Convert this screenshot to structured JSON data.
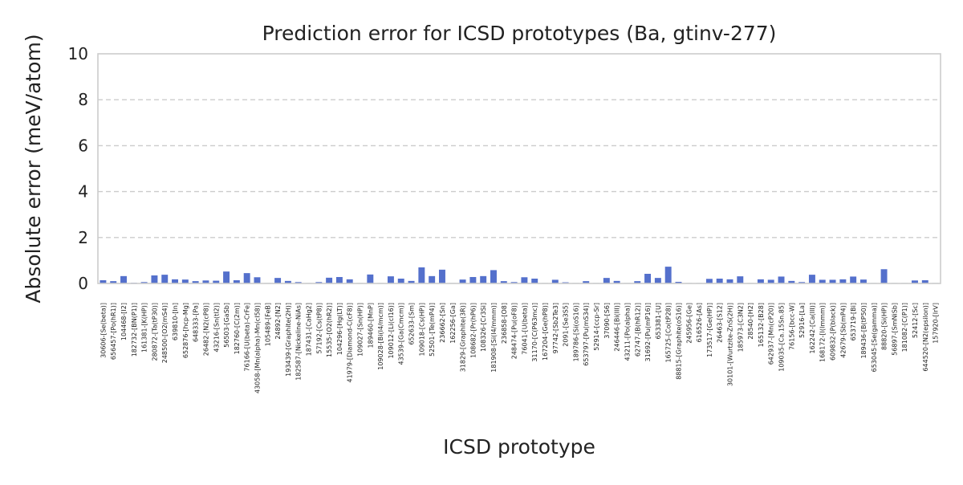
{
  "chart_data": {
    "type": "bar",
    "title": "Prediction error for ICSD prototypes (Ba, gtinv-277)",
    "xlabel": "ICSD prototype",
    "ylabel": "Absolute error (meV/atom)",
    "ylim": [
      0,
      10
    ],
    "yticks": [
      0,
      2,
      4,
      6,
      8,
      10
    ],
    "grid": "horizontal-dashed",
    "bar_color": "#5470cc",
    "categories": [
      "30606-[Se(beta)]",
      "656457-[Po(hR1)]",
      "104468-[I2]",
      "182732-[BN(P1)]",
      "161381-[K(HP)]",
      "280872-[Ta(tP30)]",
      "248500-[O2(mS4)]",
      "639810-[In]",
      "652876-[hcp-Mg]",
      "648333-[Pa]",
      "26482-[N2(cP8)]",
      "43216-[Sn(tI2)]",
      "56503-[GaSb]",
      "182760-[C(2m)]",
      "76166-[U(beta)-CrFe]",
      "43058-[Mn(alpha)-Mn(cI58)]",
      "105489-[FeB]",
      "24892-[N2]",
      "193439-[Graphite(2H)]",
      "182587-[Nickeline-NiAs]",
      "187431-[CaHg2]",
      "57192-[Cs(tP8)]",
      "15535-[O2(hR2)]",
      "104296-[Hg(LT)]",
      "41979-[Diamond-C(cF8)]",
      "109027-[Sn(HP)]",
      "189460-[MnP]",
      "109028-[Bi(I4/mcm)]",
      "109012-[Li(cI16)]",
      "43539-[Ga(Cmcm)]",
      "652633-[Sm]",
      "109018-[Cs(HP)]",
      "52501-[Te(mP4)]",
      "236662-[Sn]",
      "162256-[Ga]",
      "31829-[Graphite(3R)]",
      "108682-[Pr(hP6)]",
      "108326-[Cr3Si]",
      "181908-[Si(I4/mmm)]",
      "236858-[O8]",
      "248474-[Pu(oF8)]",
      "76041-[U(beta)]",
      "31170-[C(P63mc)]",
      "167204-[Ge(hP8)]",
      "97742-[Sb2Te3]",
      "2091-[Se3S5]",
      "189786-[Si(oS16)]",
      "653797-[Pu(mS34)]",
      "52914-[ccp-Sr]",
      "37090-[S6]",
      "246446-[Bi(III)]",
      "43211-[Po(alpha)]",
      "62747-[B(hR12)]",
      "31692-[Pu(mP16)]",
      "653381-[U]",
      "165725-[Co(tP28)]",
      "88815-[Graphite(oS16)]",
      "245956-[Ge]",
      "616526-[As]",
      "173517-[Ge(HP)]",
      "26463-[S12]",
      "30101-[Wurtzite-ZnS(2H)]",
      "185973-[C3N2]",
      "28540-[H2]",
      "165132-[B28]",
      "642937-[Mn(cP20)]",
      "109035-[Ca.15Sn.85]",
      "76156-[bcc-W]",
      "52916-[La]",
      "162242-[Ca(III)]",
      "168172-[I(Immm)]",
      "609832-[P(black)]",
      "42679-[Sb(mP4)]",
      "653719-[Bi]",
      "189436-[B(tP50)]",
      "653045-[Se(gamma)]",
      "88820-[Si(HP)]",
      "56897-[SmNiSb]",
      "181082-[C(P1)]",
      "52412-[Sc]",
      "644520-[N2(epsilon)]",
      "157920-[IrV]"
    ],
    "values": [
      0.14,
      0.1,
      0.32,
      0.03,
      0.06,
      0.35,
      0.38,
      0.18,
      0.17,
      0.1,
      0.13,
      0.12,
      0.52,
      0.14,
      0.45,
      0.27,
      0.02,
      0.24,
      0.11,
      0.06,
      0.02,
      0.06,
      0.25,
      0.28,
      0.18,
      0.02,
      0.39,
      0.02,
      0.31,
      0.21,
      0.11,
      0.7,
      0.32,
      0.6,
      0.02,
      0.17,
      0.28,
      0.32,
      0.58,
      0.1,
      0.06,
      0.27,
      0.21,
      0.02,
      0.16,
      0.05,
      0.02,
      0.1,
      0.02,
      0.24,
      0.11,
      0.02,
      0.1,
      0.42,
      0.24,
      0.73,
      0.07,
      0.02,
      0.02,
      0.2,
      0.21,
      0.18,
      0.31,
      0.02,
      0.18,
      0.16,
      0.3,
      0.11,
      0.06,
      0.38,
      0.16,
      0.16,
      0.18,
      0.3,
      0.17,
      0.02,
      0.62,
      0.02,
      0.02,
      0.13,
      0.14,
      0.02
    ]
  }
}
